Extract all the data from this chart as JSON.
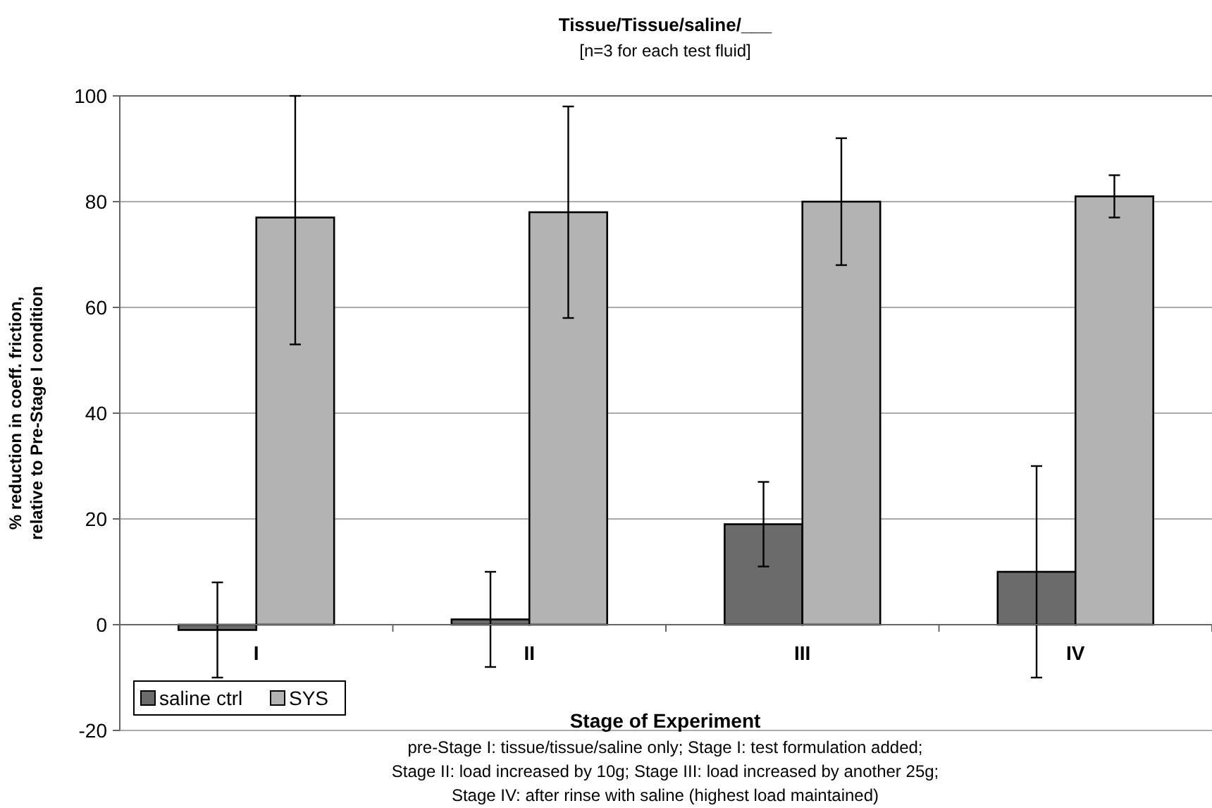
{
  "chart_data": {
    "type": "bar",
    "title": "Tissue/Tissue/saline/___",
    "subtitle": "[n=3 for each test fluid]",
    "xlabel": "Stage of Experiment",
    "ylabel": "% reduction in coeff. friction, relative to Pre-Stage I condition",
    "categories": [
      "I",
      "II",
      "III",
      "IV"
    ],
    "series": [
      {
        "name": "saline ctrl",
        "color": "#6b6b6b",
        "values": [
          -1,
          1,
          19,
          10
        ],
        "errors": [
          [
            -10,
            8
          ],
          [
            -8,
            10
          ],
          [
            11,
            27
          ],
          [
            -10,
            30
          ]
        ]
      },
      {
        "name": "SYS",
        "color": "#b3b3b3",
        "values": [
          77,
          78,
          80,
          81
        ],
        "errors": [
          [
            53,
            100
          ],
          [
            58,
            98
          ],
          [
            68,
            92
          ],
          [
            77,
            85
          ]
        ]
      }
    ],
    "ylim": [
      -20,
      100
    ],
    "yticks": [
      -20,
      0,
      20,
      40,
      60,
      80,
      100
    ],
    "grid": "y",
    "legend": "bottom left",
    "annotations": [
      "pre-Stage I: tissue/tissue/saline only; Stage I: test formulation added;",
      "Stage II: load increased by 10g; Stage III: load increased by another 25g;",
      "Stage IV: after rinse with saline (highest load maintained)"
    ]
  }
}
